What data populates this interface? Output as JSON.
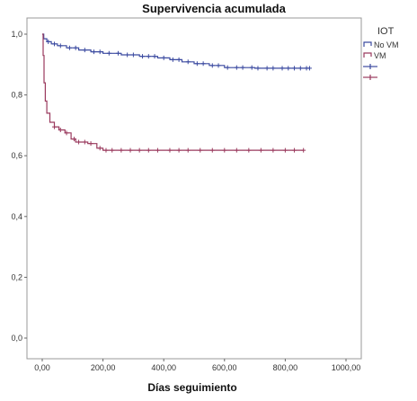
{
  "chart_data": {
    "type": "line",
    "title": "Supervivencia acumulada",
    "xlabel": "Días seguimiento",
    "ylabel": "",
    "xlim": [
      0,
      1000
    ],
    "ylim": [
      0,
      1.0
    ],
    "x_ticks": [
      "0,00",
      "200,00",
      "400,00",
      "600,00",
      "800,00",
      "1000,00"
    ],
    "y_ticks": [
      "0,0",
      "0,2",
      "0,4",
      "0,6",
      "0,8",
      "1,0"
    ],
    "grid": false,
    "legend": {
      "title": "IOT",
      "placement": "top-right",
      "entries": [
        "No VM",
        "VM",
        "+",
        "+"
      ]
    },
    "series": [
      {
        "name": "No VM",
        "color": "#3b4aa0",
        "points": [
          [
            0,
            1.0
          ],
          [
            5,
            0.985
          ],
          [
            15,
            0.975
          ],
          [
            30,
            0.968
          ],
          [
            50,
            0.962
          ],
          [
            80,
            0.955
          ],
          [
            120,
            0.948
          ],
          [
            160,
            0.942
          ],
          [
            200,
            0.937
          ],
          [
            260,
            0.932
          ],
          [
            320,
            0.927
          ],
          [
            380,
            0.922
          ],
          [
            420,
            0.916
          ],
          [
            460,
            0.909
          ],
          [
            500,
            0.903
          ],
          [
            550,
            0.897
          ],
          [
            600,
            0.89
          ],
          [
            700,
            0.888
          ],
          [
            880,
            0.888
          ]
        ],
        "censor_x": [
          20,
          40,
          60,
          90,
          110,
          140,
          170,
          190,
          220,
          250,
          280,
          300,
          330,
          350,
          370,
          400,
          430,
          450,
          480,
          510,
          530,
          560,
          580,
          610,
          640,
          660,
          690,
          710,
          740,
          760,
          790,
          810,
          830,
          850,
          870,
          880
        ]
      },
      {
        "name": "VM",
        "color": "#9a3a5e",
        "points": [
          [
            0,
            1.0
          ],
          [
            3,
            0.93
          ],
          [
            6,
            0.84
          ],
          [
            10,
            0.78
          ],
          [
            15,
            0.74
          ],
          [
            25,
            0.71
          ],
          [
            40,
            0.695
          ],
          [
            55,
            0.685
          ],
          [
            75,
            0.675
          ],
          [
            95,
            0.655
          ],
          [
            110,
            0.645
          ],
          [
            150,
            0.64
          ],
          [
            180,
            0.625
          ],
          [
            200,
            0.618
          ],
          [
            860,
            0.618
          ]
        ],
        "censor_x": [
          40,
          60,
          80,
          105,
          120,
          140,
          160,
          190,
          210,
          230,
          260,
          290,
          320,
          350,
          380,
          420,
          450,
          480,
          520,
          560,
          600,
          640,
          680,
          720,
          760,
          800,
          830,
          860
        ]
      }
    ]
  }
}
